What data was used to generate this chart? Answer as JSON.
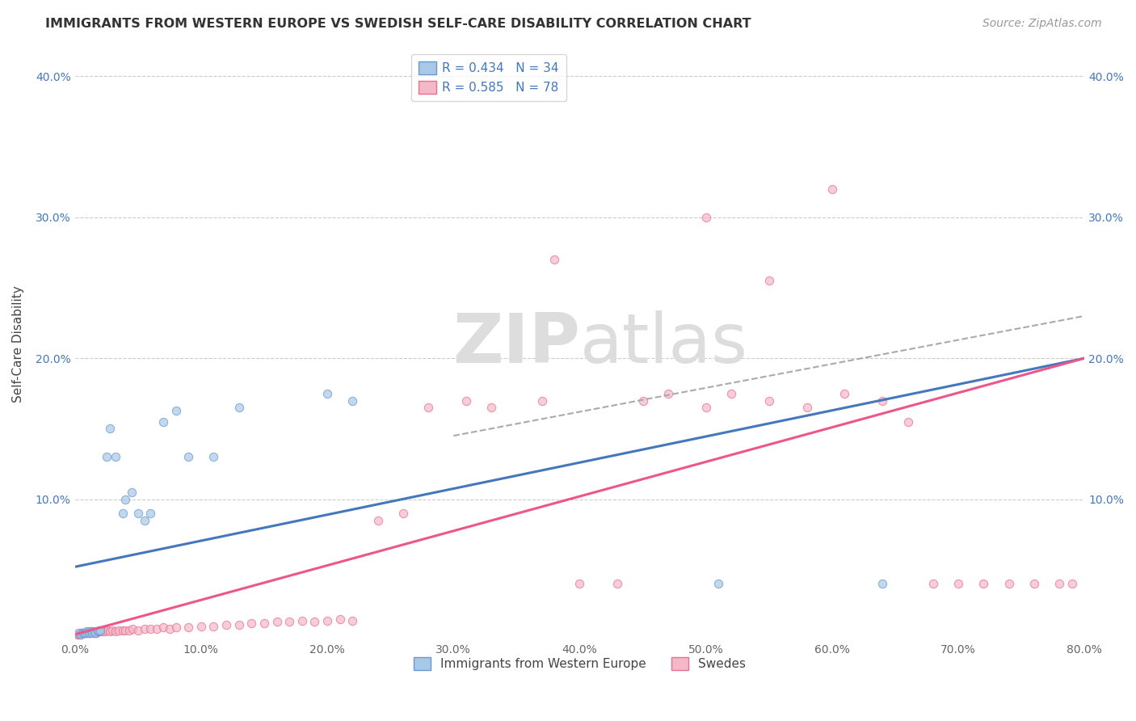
{
  "title": "IMMIGRANTS FROM WESTERN EUROPE VS SWEDISH SELF-CARE DISABILITY CORRELATION CHART",
  "source": "Source: ZipAtlas.com",
  "ylabel_label": "Self-Care Disability",
  "xlim": [
    0.0,
    0.8
  ],
  "ylim": [
    0.0,
    0.42
  ],
  "xticks": [
    0.0,
    0.1,
    0.2,
    0.3,
    0.4,
    0.5,
    0.6,
    0.7,
    0.8
  ],
  "yticks": [
    0.0,
    0.1,
    0.2,
    0.3,
    0.4
  ],
  "xtick_labels": [
    "0.0%",
    "10.0%",
    "20.0%",
    "30.0%",
    "40.0%",
    "50.0%",
    "60.0%",
    "70.0%",
    "80.0%"
  ],
  "ytick_labels": [
    "",
    "10.0%",
    "20.0%",
    "30.0%",
    "40.0%"
  ],
  "legend_entry1": "R = 0.434   N = 34",
  "legend_entry2": "R = 0.585   N = 78",
  "legend_label1": "Immigrants from Western Europe",
  "legend_label2": "Swedes",
  "color_blue": "#a8c8e8",
  "color_pink": "#f4b8c8",
  "color_blue_edge": "#6699cc",
  "color_pink_edge": "#e87090",
  "color_blue_line": "#4477bb",
  "color_pink_line": "#ee5588",
  "color_gray_line": "#aaaaaa",
  "background_color": "#ffffff",
  "watermark_color": "#dddddd",
  "blue_line_x0": 0.0,
  "blue_line_y0": 0.052,
  "blue_line_x1": 0.8,
  "blue_line_y1": 0.2,
  "pink_line_x0": 0.0,
  "pink_line_y0": 0.004,
  "pink_line_x1": 0.8,
  "pink_line_y1": 0.2,
  "gray_line_x0": 0.3,
  "gray_line_y0": 0.145,
  "gray_line_x1": 0.8,
  "gray_line_y1": 0.23,
  "blue_points_x": [
    0.003,
    0.005,
    0.006,
    0.007,
    0.008,
    0.009,
    0.01,
    0.011,
    0.012,
    0.013,
    0.014,
    0.015,
    0.016,
    0.018,
    0.019,
    0.02,
    0.025,
    0.028,
    0.032,
    0.038,
    0.04,
    0.045,
    0.05,
    0.055,
    0.06,
    0.07,
    0.08,
    0.09,
    0.11,
    0.13,
    0.2,
    0.22,
    0.51,
    0.64
  ],
  "blue_points_y": [
    0.005,
    0.004,
    0.005,
    0.005,
    0.005,
    0.006,
    0.005,
    0.006,
    0.005,
    0.006,
    0.005,
    0.006,
    0.005,
    0.006,
    0.007,
    0.007,
    0.13,
    0.15,
    0.13,
    0.09,
    0.1,
    0.105,
    0.09,
    0.085,
    0.09,
    0.155,
    0.163,
    0.13,
    0.13,
    0.165,
    0.175,
    0.17,
    0.04,
    0.04
  ],
  "pink_points_x": [
    0.002,
    0.003,
    0.004,
    0.005,
    0.006,
    0.007,
    0.008,
    0.009,
    0.01,
    0.011,
    0.012,
    0.013,
    0.015,
    0.016,
    0.017,
    0.018,
    0.019,
    0.02,
    0.022,
    0.024,
    0.026,
    0.028,
    0.03,
    0.032,
    0.035,
    0.038,
    0.04,
    0.043,
    0.046,
    0.05,
    0.055,
    0.06,
    0.065,
    0.07,
    0.075,
    0.08,
    0.09,
    0.1,
    0.11,
    0.12,
    0.13,
    0.14,
    0.15,
    0.16,
    0.17,
    0.18,
    0.19,
    0.2,
    0.21,
    0.22,
    0.24,
    0.26,
    0.28,
    0.31,
    0.33,
    0.37,
    0.4,
    0.43,
    0.45,
    0.47,
    0.5,
    0.52,
    0.55,
    0.58,
    0.61,
    0.64,
    0.66,
    0.68,
    0.7,
    0.72,
    0.74,
    0.76,
    0.78,
    0.79,
    0.38,
    0.5,
    0.55,
    0.6
  ],
  "pink_points_y": [
    0.004,
    0.004,
    0.004,
    0.005,
    0.005,
    0.005,
    0.005,
    0.005,
    0.005,
    0.005,
    0.005,
    0.006,
    0.005,
    0.005,
    0.005,
    0.006,
    0.006,
    0.006,
    0.006,
    0.006,
    0.007,
    0.006,
    0.007,
    0.006,
    0.007,
    0.007,
    0.007,
    0.007,
    0.008,
    0.007,
    0.008,
    0.008,
    0.008,
    0.009,
    0.008,
    0.009,
    0.009,
    0.01,
    0.01,
    0.011,
    0.011,
    0.012,
    0.012,
    0.013,
    0.013,
    0.014,
    0.013,
    0.014,
    0.015,
    0.014,
    0.085,
    0.09,
    0.165,
    0.17,
    0.165,
    0.17,
    0.04,
    0.04,
    0.17,
    0.175,
    0.165,
    0.175,
    0.17,
    0.165,
    0.175,
    0.17,
    0.155,
    0.04,
    0.04,
    0.04,
    0.04,
    0.04,
    0.04,
    0.04,
    0.27,
    0.3,
    0.255,
    0.32
  ]
}
